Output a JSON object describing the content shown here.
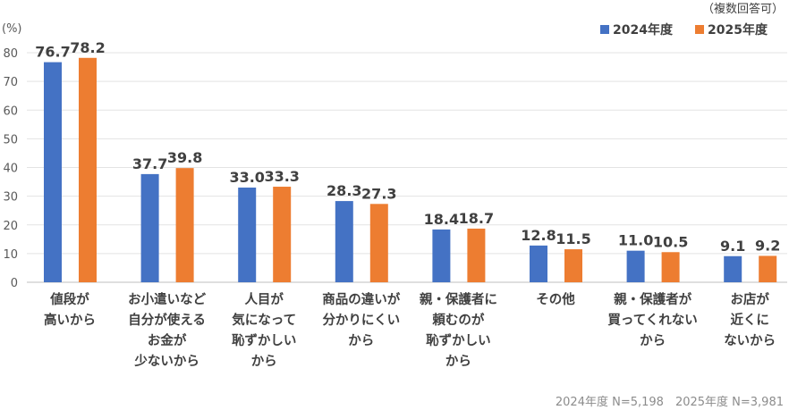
{
  "chart_data": {
    "type": "bar",
    "unit_label": "(%)",
    "note": "（複数回答可）",
    "footnote": "2024年度 N=5,198　2025年度 N=3,981",
    "ylim": [
      0,
      80
    ],
    "yticks": [
      0,
      10,
      20,
      30,
      40,
      50,
      60,
      70,
      80
    ],
    "grid": true,
    "legend_position": "top-right",
    "categories": [
      [
        "値段が",
        "高いから"
      ],
      [
        "お小遣いなど",
        "自分が使える",
        "お金が",
        "少ないから"
      ],
      [
        "人目が",
        "気になって",
        "恥ずかしい",
        "から"
      ],
      [
        "商品の違いが",
        "分かりにくい",
        "から"
      ],
      [
        "親・保護者に",
        "頼むのが",
        "恥ずかしい",
        "から"
      ],
      [
        "その他"
      ],
      [
        "親・保護者が",
        "買ってくれない",
        "から"
      ],
      [
        "お店が",
        "近くに",
        "ないから"
      ]
    ],
    "series": [
      {
        "name": "2024年度",
        "color": "#4472C4",
        "values": [
          76.7,
          37.7,
          33.0,
          28.3,
          18.4,
          12.8,
          11.0,
          9.1
        ]
      },
      {
        "name": "2025年度",
        "color": "#ED7D31",
        "values": [
          78.2,
          39.8,
          33.3,
          27.3,
          18.7,
          11.5,
          10.5,
          9.2
        ]
      }
    ]
  }
}
